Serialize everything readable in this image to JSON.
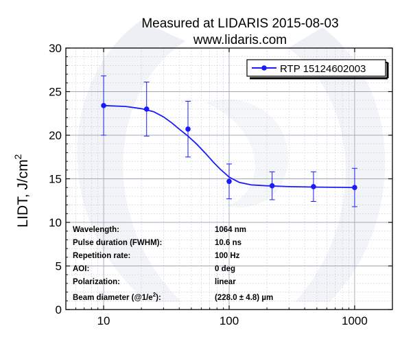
{
  "chart_data": {
    "type": "scatter",
    "title_line1": "Measured at LIDARIS 2015-08-03",
    "title_line2": "www.lidaris.com",
    "xlabel": "",
    "ylabel_main": "LIDT, J/cm",
    "ylabel_sup": "2",
    "x_scale": "log",
    "xlim": [
      5,
      2000
    ],
    "ylim": [
      0,
      30
    ],
    "x_ticks": [
      10,
      100,
      1000
    ],
    "x_tick_labels": [
      "10",
      "100",
      "1000"
    ],
    "y_ticks": [
      0,
      5,
      10,
      15,
      20,
      25,
      30
    ],
    "y_tick_labels": [
      "0",
      "5",
      "10",
      "15",
      "20",
      "25",
      "30"
    ],
    "grid": true,
    "legend_position": "top-right",
    "series": [
      {
        "name": "RTP 15124602003",
        "color": "#1a1aff",
        "points": [
          {
            "x": 10,
            "y": 23.4,
            "err": 3.4
          },
          {
            "x": 22,
            "y": 23.0,
            "err": 3.1
          },
          {
            "x": 47,
            "y": 20.7,
            "err": 3.2
          },
          {
            "x": 100,
            "y": 14.7,
            "err": 2.0
          },
          {
            "x": 220,
            "y": 14.2,
            "err": 1.6
          },
          {
            "x": 470,
            "y": 14.1,
            "err": 1.7
          },
          {
            "x": 1000,
            "y": 14.0,
            "err": 2.2
          }
        ],
        "fit_curve": [
          [
            10,
            23.4
          ],
          [
            15,
            23.3
          ],
          [
            20,
            23.05
          ],
          [
            25,
            22.7
          ],
          [
            30,
            22.1
          ],
          [
            35,
            21.4
          ],
          [
            40,
            20.7
          ],
          [
            47,
            19.9
          ],
          [
            55,
            19.0
          ],
          [
            65,
            17.9
          ],
          [
            75,
            16.9
          ],
          [
            85,
            16.1
          ],
          [
            100,
            15.2
          ],
          [
            120,
            14.6
          ],
          [
            150,
            14.3
          ],
          [
            200,
            14.2
          ],
          [
            300,
            14.1
          ],
          [
            500,
            14.05
          ],
          [
            1000,
            14.0
          ]
        ]
      }
    ],
    "info_rows": [
      {
        "label": "Wavelength:",
        "value": "1064 nm"
      },
      {
        "label": "Pulse duration (FWHM):",
        "value": "10.6 ns"
      },
      {
        "label": "Repetition rate:",
        "value": "100 Hz"
      },
      {
        "label": "AOI:",
        "value": "0 deg"
      },
      {
        "label": "Polarization:",
        "value": "linear"
      },
      {
        "label": "Beam diameter (@1/e",
        "label_sup": "2",
        "label_tail": "):",
        "value": "(228.0 ± 4.8) µm"
      }
    ]
  }
}
